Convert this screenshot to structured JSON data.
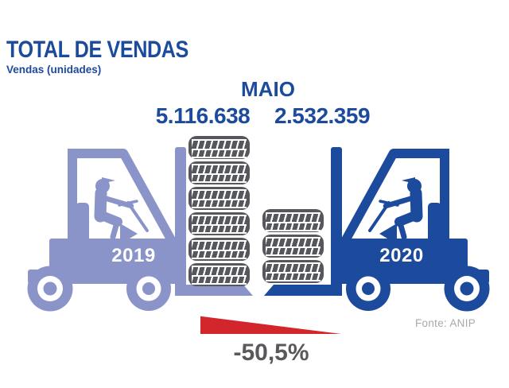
{
  "header": {
    "title": "TOTAL DE VENDAS",
    "subtitle": "Vendas (unidades)"
  },
  "chart_data": {
    "type": "bar",
    "subtype": "pictorial-isotype (tire stacks carried by forklifts)",
    "title": "TOTAL DE VENDAS",
    "subtitle": "Vendas (unidades)",
    "period_label": "MAIO",
    "categories": [
      "2019",
      "2020"
    ],
    "values": [
      5116638,
      2532359
    ],
    "value_labels": [
      "5.116.638",
      "2.532.359"
    ],
    "tire_stack_counts": [
      6,
      3
    ],
    "change_pct": -50.5,
    "change_label": "-50,5%",
    "source": "Fonte: ANIP",
    "legend_position": "on-graphic (year labels printed on each forklift)",
    "colors": {
      "series_2019": "#8B94C9",
      "series_2020": "#1C4A9C",
      "text_blue": "#1C4A9C",
      "tire_gray": "#55575C",
      "decline_red": "#D2262C",
      "pct_gray": "#58595B",
      "source_gray": "#A7A9AC"
    }
  }
}
